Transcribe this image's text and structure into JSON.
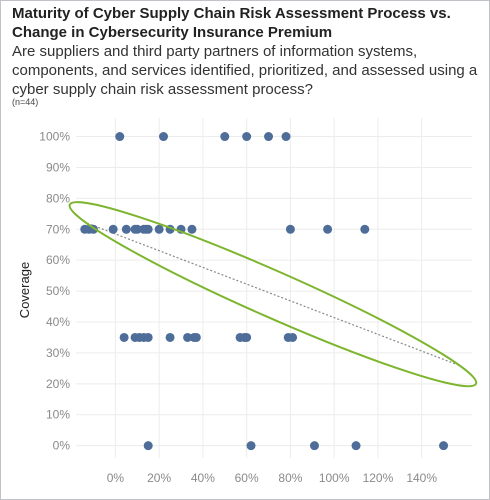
{
  "header": {
    "title": "Maturity of Cyber Supply Chain Risk Assessment Process vs. Change in Cybersecurity Insurance Premium",
    "subtitle": "Are suppliers and third party partners of information systems, components, and services identified, prioritized, and assessed using a cyber supply chain risk assessment process?",
    "note": "(n=44)"
  },
  "chart_data": {
    "type": "scatter",
    "title": "Maturity of Cyber Supply Chain Risk Assessment Process vs. Change in Cybersecurity Insurance Premium",
    "xlabel": "",
    "ylabel": "Coverage",
    "x_ticks": [
      "0%",
      "20%",
      "40%",
      "60%",
      "80%",
      "100%",
      "120%",
      "140%"
    ],
    "y_ticks": [
      "0%",
      "10%",
      "20%",
      "30%",
      "40%",
      "50%",
      "60%",
      "70%",
      "80%",
      "90%",
      "100%"
    ],
    "xlim": [
      -0.18,
      1.63
    ],
    "ylim": [
      -0.04,
      1.06
    ],
    "grid": true,
    "point_color": "#4f6d99",
    "trend_line": {
      "from": [
        -0.13,
        0.72
      ],
      "to": [
        1.57,
        0.26
      ],
      "color": "#888888",
      "style": "dotted"
    },
    "highlight_ellipse": {
      "center": [
        0.72,
        0.49
      ],
      "color": "#7db52e"
    },
    "points": [
      {
        "x": 0.02,
        "y": 1.0
      },
      {
        "x": 0.22,
        "y": 1.0
      },
      {
        "x": 0.5,
        "y": 1.0
      },
      {
        "x": 0.6,
        "y": 1.0
      },
      {
        "x": 0.7,
        "y": 1.0
      },
      {
        "x": 0.78,
        "y": 1.0
      },
      {
        "x": -0.14,
        "y": 0.7
      },
      {
        "x": -0.12,
        "y": 0.7
      },
      {
        "x": -0.1,
        "y": 0.7
      },
      {
        "x": -0.01,
        "y": 0.7
      },
      {
        "x": 0.05,
        "y": 0.7
      },
      {
        "x": 0.09,
        "y": 0.7
      },
      {
        "x": 0.1,
        "y": 0.7
      },
      {
        "x": 0.13,
        "y": 0.7
      },
      {
        "x": 0.14,
        "y": 0.7
      },
      {
        "x": 0.15,
        "y": 0.7
      },
      {
        "x": 0.2,
        "y": 0.7
      },
      {
        "x": 0.25,
        "y": 0.7
      },
      {
        "x": 0.3,
        "y": 0.7
      },
      {
        "x": 0.35,
        "y": 0.7
      },
      {
        "x": 0.8,
        "y": 0.7
      },
      {
        "x": 0.97,
        "y": 0.7
      },
      {
        "x": 1.14,
        "y": 0.7
      },
      {
        "x": 0.04,
        "y": 0.35
      },
      {
        "x": 0.09,
        "y": 0.35
      },
      {
        "x": 0.11,
        "y": 0.35
      },
      {
        "x": 0.13,
        "y": 0.35
      },
      {
        "x": 0.15,
        "y": 0.35
      },
      {
        "x": 0.25,
        "y": 0.35
      },
      {
        "x": 0.33,
        "y": 0.35
      },
      {
        "x": 0.36,
        "y": 0.35
      },
      {
        "x": 0.37,
        "y": 0.35
      },
      {
        "x": 0.57,
        "y": 0.35
      },
      {
        "x": 0.59,
        "y": 0.35
      },
      {
        "x": 0.6,
        "y": 0.35
      },
      {
        "x": 0.79,
        "y": 0.35
      },
      {
        "x": 0.81,
        "y": 0.35
      },
      {
        "x": 0.15,
        "y": 0.0
      },
      {
        "x": 0.62,
        "y": 0.0
      },
      {
        "x": 0.91,
        "y": 0.0
      },
      {
        "x": 1.1,
        "y": 0.0
      },
      {
        "x": 1.5,
        "y": 0.0
      }
    ]
  }
}
